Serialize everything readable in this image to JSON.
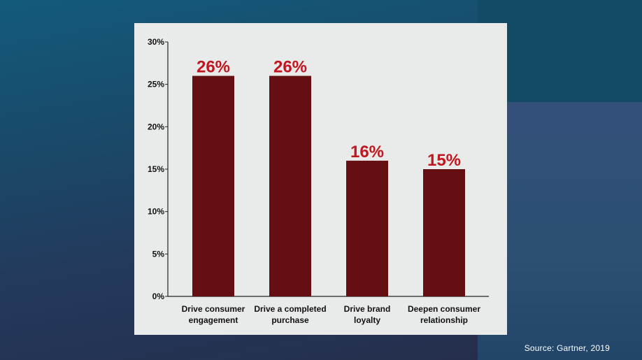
{
  "footer": {
    "source": "Source: Gartner, 2019"
  },
  "colors": {
    "bar": "#660f12",
    "value_label": "#c1161d",
    "axis": "#222222",
    "text": "#111111",
    "card": "#e9eaea"
  },
  "chart_data": {
    "type": "bar",
    "title": "",
    "xlabel": "",
    "ylabel": "",
    "ylim": [
      0,
      30
    ],
    "yticks": [
      0,
      5,
      10,
      15,
      20,
      25,
      30
    ],
    "ytick_labels": [
      "0%",
      "5%",
      "10%",
      "15%",
      "20%",
      "25%",
      "30%"
    ],
    "grid": false,
    "categories": [
      [
        "Drive consumer",
        "engagement"
      ],
      [
        "Drive a completed",
        "purchase"
      ],
      [
        "Drive brand",
        "loyalty"
      ],
      [
        "Deepen consumer",
        "relationship"
      ]
    ],
    "values": [
      26,
      26,
      16,
      15
    ],
    "value_labels": [
      "26%",
      "26%",
      "16%",
      "15%"
    ]
  }
}
